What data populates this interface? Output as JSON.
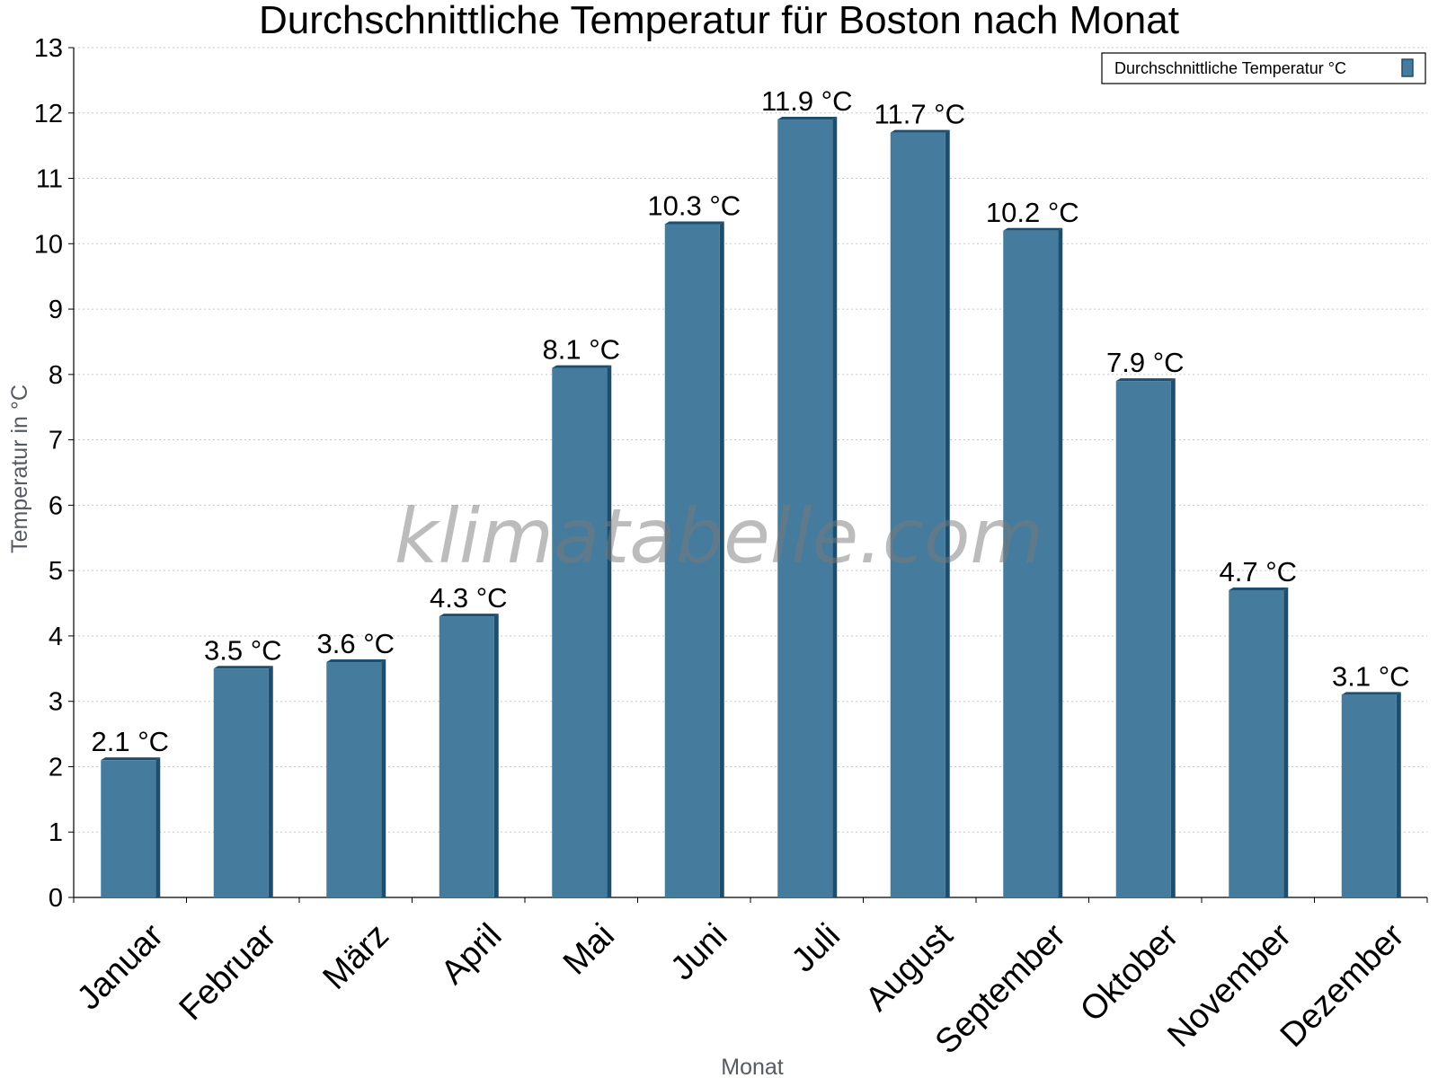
{
  "chart_data": {
    "type": "bar",
    "title": "Durchschnittliche Temperatur für Boston nach Monat",
    "xlabel": "Monat",
    "ylabel": "Temperatur in °C",
    "ylim": [
      0,
      13
    ],
    "yticks": [
      "0",
      "1",
      "2",
      "3",
      "4",
      "5",
      "6",
      "7",
      "8",
      "9",
      "10",
      "11",
      "12",
      "13"
    ],
    "categories": [
      "Januar",
      "Februar",
      "März",
      "April",
      "Mai",
      "Juni",
      "Juli",
      "August",
      "September",
      "Oktober",
      "November",
      "Dezember"
    ],
    "series": [
      {
        "name": "Durchschnittliche Temperatur °C",
        "values": [
          2.1,
          3.5,
          3.6,
          4.3,
          8.1,
          10.3,
          11.9,
          11.7,
          10.2,
          7.9,
          4.7,
          3.1
        ],
        "labels": [
          "2.1 °C",
          "3.5 °C",
          "3.6 °C",
          "4.3 °C",
          "8.1 °C",
          "10.3 °C",
          "11.9 °C",
          "11.7 °C",
          "10.2 °C",
          "7.9 °C",
          "4.7 °C",
          "3.1 °C"
        ]
      }
    ],
    "grid": true,
    "legend_position": "top-right",
    "bar_color": "#457b9d",
    "bar_edge_color": "#1d4e6e"
  },
  "watermark": "klimatabelle.com"
}
